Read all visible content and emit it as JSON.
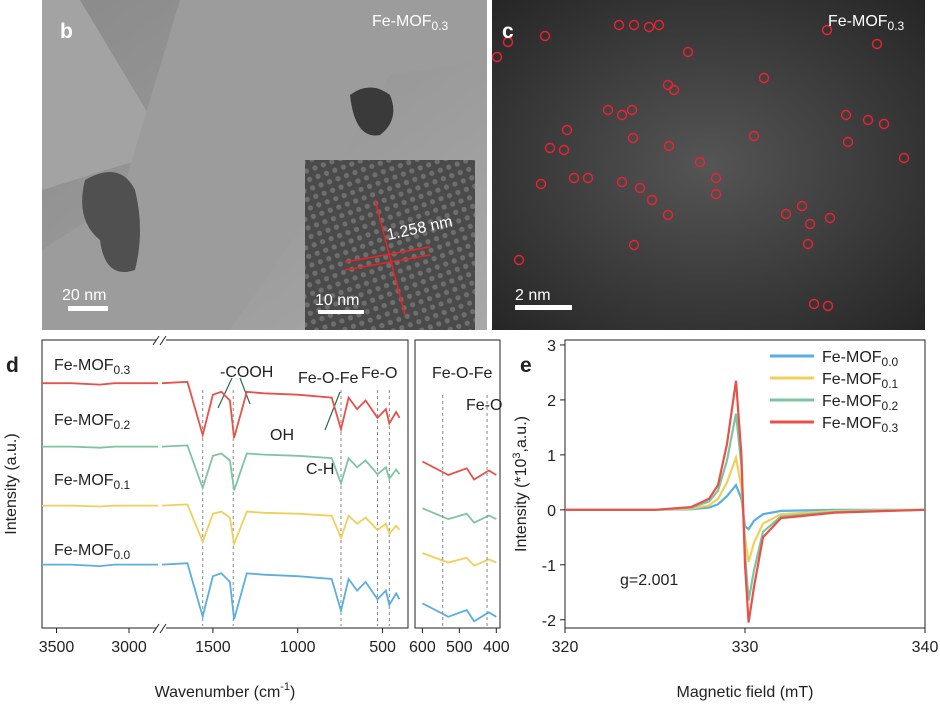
{
  "panels": [
    {
      "letter": "b",
      "label": "Fe-MOF",
      "label_sub": "0.3",
      "scale_bar": "20 nm",
      "inset_scale_bar": "10 nm",
      "measurement": "1.258 nm"
    },
    {
      "letter": "c",
      "label": "Fe-MOF",
      "label_sub": "0.3",
      "scale_bar": "2 nm"
    }
  ],
  "chart_data": [
    {
      "letter": "d",
      "type": "line",
      "x_label": "Wavenumber (cm",
      "x_label_sup": "-1",
      "x_label_end": ")",
      "y_label": "Intensity (a.u.)",
      "x": [
        3600,
        3400,
        3200,
        3100,
        2800,
        1800,
        1650,
        1560,
        1500,
        1450,
        1400,
        1375,
        1300,
        1200,
        1000,
        800,
        745,
        700,
        650,
        600,
        530,
        480,
        460,
        420,
        400
      ],
      "xlim": [
        3600,
        350
      ],
      "x_break": [
        2800,
        1800
      ],
      "xticks": [
        3500,
        3000,
        1500,
        1000,
        500
      ],
      "ylim": [
        -0.5,
        9.5
      ],
      "reference_lines": [
        1560,
        1380,
        745,
        530,
        460
      ],
      "annotations": [
        "-COOH",
        "OH",
        "C-H",
        "Fe-O-Fe",
        "Fe-O"
      ],
      "series": [
        {
          "name": "Fe-MOF",
          "subscript": "0.3",
          "color": "#e8504a",
          "values": [
            8.0,
            8.0,
            7.95,
            8.0,
            8.0,
            8.0,
            8.05,
            6.2,
            7.6,
            7.7,
            7.4,
            6.1,
            7.7,
            7.65,
            7.6,
            7.5,
            6.4,
            7.5,
            7.1,
            7.4,
            6.8,
            7.1,
            6.6,
            7.0,
            6.8
          ]
        },
        {
          "name": "Fe-MOF",
          "subscript": "0.2",
          "color": "#7fc4a0",
          "values": [
            5.8,
            5.8,
            5.76,
            5.8,
            5.8,
            5.8,
            5.84,
            4.36,
            5.48,
            5.56,
            5.32,
            4.28,
            5.56,
            5.52,
            5.48,
            5.4,
            4.52,
            5.4,
            5.08,
            5.32,
            4.84,
            5.08,
            4.68,
            5.0,
            4.84
          ]
        },
        {
          "name": "Fe-MOF",
          "subscript": "0.1",
          "color": "#f0cf5a",
          "values": [
            3.75,
            3.75,
            3.72,
            3.75,
            3.75,
            3.75,
            3.79,
            2.49,
            3.47,
            3.54,
            3.33,
            2.42,
            3.54,
            3.5,
            3.47,
            3.4,
            2.63,
            3.4,
            3.12,
            3.33,
            2.91,
            3.12,
            2.77,
            3.05,
            2.91
          ]
        },
        {
          "name": "Fe-MOF",
          "subscript": "0.0",
          "color": "#5aaee0",
          "values": [
            1.7,
            1.7,
            1.65,
            1.7,
            1.7,
            1.7,
            1.75,
            -0.1,
            1.3,
            1.4,
            1.1,
            -0.2,
            1.4,
            1.35,
            1.3,
            1.2,
            0.1,
            1.2,
            0.8,
            1.1,
            0.5,
            0.8,
            0.3,
            0.7,
            0.5
          ]
        }
      ],
      "inset": {
        "xlim": [
          620,
          390
        ],
        "ylim": [
          0,
          12.8
        ],
        "xticks": [
          600,
          500,
          400
        ],
        "reference_lines": [
          545,
          425
        ],
        "annotations": [
          "Fe-O-Fe",
          "Fe-O"
        ]
      }
    },
    {
      "letter": "e",
      "type": "line",
      "x_label": "Magnetic field (mT)",
      "y_label": "Intensity (*10",
      "y_label_sup": "3",
      "y_label_end": ",a.u.)",
      "x": [
        320,
        325,
        327,
        328,
        328.5,
        329,
        329.5,
        329.8,
        330,
        330.2,
        330.5,
        331,
        332,
        335,
        340
      ],
      "xlim": [
        320,
        340
      ],
      "xticks": [
        320,
        330,
        340
      ],
      "ylim": [
        -2.15,
        3.09
      ],
      "yticks": [
        -2,
        -1,
        0,
        1,
        2,
        3
      ],
      "annotations": [
        "g=2.001"
      ],
      "legend": "upper right",
      "series": [
        {
          "name": "Fe-MOF",
          "subscript": "0.0",
          "color": "#5aaee0",
          "values": [
            0,
            0,
            0.01,
            0.04,
            0.1,
            0.25,
            0.45,
            0.2,
            -0.3,
            -0.35,
            -0.2,
            -0.08,
            -0.02,
            0,
            0
          ]
        },
        {
          "name": "Fe-MOF",
          "subscript": "0.1",
          "color": "#f0cf5a",
          "values": [
            0,
            0,
            0.02,
            0.08,
            0.2,
            0.5,
            0.95,
            0.4,
            -0.5,
            -0.95,
            -0.6,
            -0.25,
            -0.08,
            -0.02,
            0
          ]
        },
        {
          "name": "Fe-MOF",
          "subscript": "0.2",
          "color": "#7fc4a0",
          "values": [
            0,
            0,
            0.04,
            0.15,
            0.35,
            0.9,
            1.75,
            0.8,
            -0.8,
            -1.65,
            -1.1,
            -0.4,
            -0.12,
            -0.04,
            0
          ]
        },
        {
          "name": "Fe-MOF",
          "subscript": "0.3",
          "color": "#e8504a",
          "values": [
            0,
            0,
            0.05,
            0.2,
            0.45,
            1.2,
            2.35,
            1.0,
            -1.0,
            -2.05,
            -1.4,
            -0.5,
            -0.15,
            -0.05,
            0
          ]
        }
      ]
    }
  ]
}
